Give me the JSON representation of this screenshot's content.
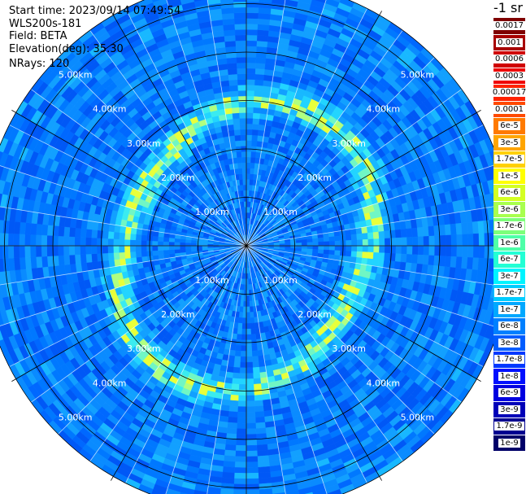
{
  "info": {
    "start_time": "Start time: 2023/09/14 07:49:54",
    "station": "WLS200s-181",
    "field": "Field: BETA",
    "elevation": "Elevation(deg): 35.30",
    "nrays": "NRays: 120"
  },
  "legend": {
    "title": "-1 sr",
    "items": [
      {
        "label": "0.0017",
        "color": "#7f0000"
      },
      {
        "label": "0.001",
        "color": "#a70000"
      },
      {
        "label": "0.0006",
        "color": "#d00000"
      },
      {
        "label": "0.0003",
        "color": "#ef0000"
      },
      {
        "label": "0.00017",
        "color": "#ff2200"
      },
      {
        "label": "0.0001",
        "color": "#ff4a00"
      },
      {
        "label": "6e-5",
        "color": "#ff7a00"
      },
      {
        "label": "3e-5",
        "color": "#ffa500"
      },
      {
        "label": "1.7e-5",
        "color": "#ffd000"
      },
      {
        "label": "1e-5",
        "color": "#ffff00"
      },
      {
        "label": "6e-6",
        "color": "#d4ff22"
      },
      {
        "label": "3e-6",
        "color": "#a8ff4e"
      },
      {
        "label": "1.7e-6",
        "color": "#7cff7a"
      },
      {
        "label": "1e-6",
        "color": "#4effa8"
      },
      {
        "label": "6e-7",
        "color": "#22ffd4"
      },
      {
        "label": "3e-7",
        "color": "#00f4ff"
      },
      {
        "label": "1.7e-7",
        "color": "#00ccff"
      },
      {
        "label": "1e-7",
        "color": "#00a8ff"
      },
      {
        "label": "6e-8",
        "color": "#0080ff"
      },
      {
        "label": "3e-8",
        "color": "#005cff"
      },
      {
        "label": "1.7e-8",
        "color": "#0038ff"
      },
      {
        "label": "1e-8",
        "color": "#0010ff"
      },
      {
        "label": "6e-9",
        "color": "#0000e0"
      },
      {
        "label": "3e-9",
        "color": "#0000b8"
      },
      {
        "label": "1.7e-9",
        "color": "#000090"
      },
      {
        "label": "1e-9",
        "color": "#000068"
      }
    ]
  },
  "chart_data": {
    "type": "heatmap",
    "projection": "polar (PPI scan)",
    "field": "BETA",
    "rays": 120,
    "range_rings_km": [
      1.0,
      2.0,
      3.0,
      4.0,
      5.0
    ],
    "max_range_km": 5.5,
    "ring_labels": [
      "1.00km",
      "2.00km",
      "3.00km",
      "4.00km",
      "5.00km"
    ],
    "radial_spokes_deg": [
      0,
      30,
      60,
      90,
      120,
      150,
      180,
      210,
      240,
      270,
      300,
      330
    ],
    "background_class": "3e-8",
    "enhanced_aerosol_band": {
      "range_km": [
        2.5,
        3.2
      ],
      "peak_class": "1e-5"
    }
  }
}
